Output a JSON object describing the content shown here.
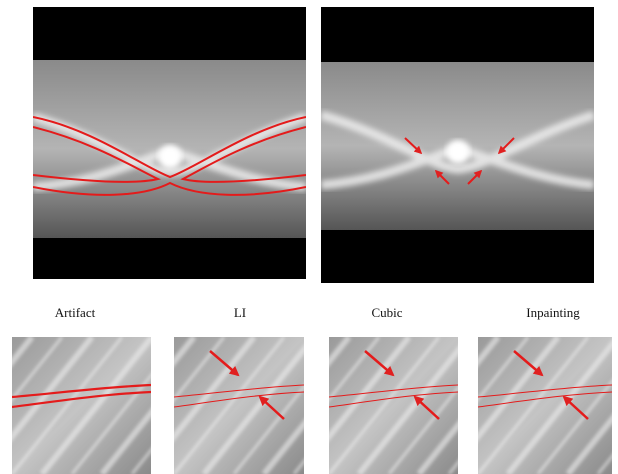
{
  "labels": [
    "Artifact",
    "LI",
    "Cubic",
    "Inpainting"
  ]
}
